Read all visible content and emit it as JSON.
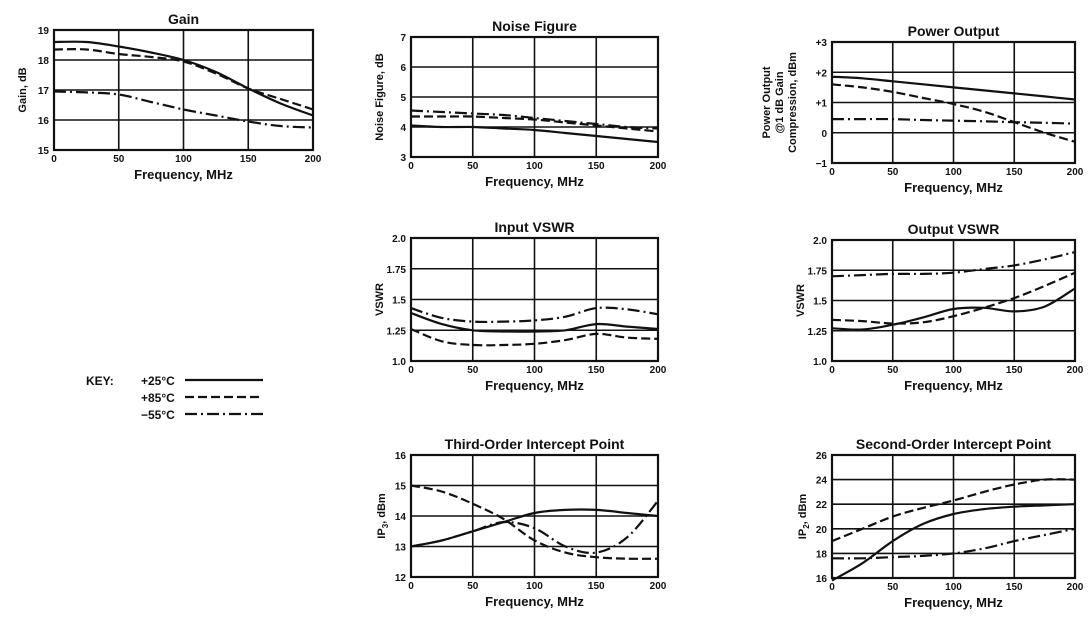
{
  "key": {
    "title": "KEY:",
    "entries": [
      {
        "label": "+25°C",
        "style": "solid"
      },
      {
        "label": "+85°C",
        "style": "dashed"
      },
      {
        "label": "−55°C",
        "style": "dashdot"
      }
    ]
  },
  "chart_data": [
    {
      "id": "gain",
      "type": "line",
      "title": "Gain",
      "xlabel": "Frequency, MHz",
      "ylabel": "Gain, dB",
      "xlim": [
        0,
        200
      ],
      "ylim": [
        15,
        19
      ],
      "xticks": [
        "0",
        "50",
        "100",
        "150",
        "200"
      ],
      "yticks": [
        "15",
        "16",
        "17",
        "18",
        "19"
      ],
      "grid": true,
      "series": [
        {
          "temp": "+25°C",
          "style": "solid",
          "x": [
            0,
            25,
            50,
            75,
            100,
            125,
            150,
            175,
            200
          ],
          "y": [
            18.6,
            18.6,
            18.45,
            18.25,
            18.0,
            17.6,
            17.05,
            16.55,
            16.15
          ]
        },
        {
          "temp": "+85°C",
          "style": "dashed",
          "x": [
            0,
            25,
            50,
            75,
            100,
            125,
            150,
            175,
            200
          ],
          "y": [
            18.35,
            18.35,
            18.2,
            18.1,
            17.95,
            17.55,
            17.05,
            16.7,
            16.35
          ]
        },
        {
          "temp": "−55°C",
          "style": "dashdot",
          "x": [
            0,
            25,
            50,
            75,
            100,
            125,
            150,
            175,
            200
          ],
          "y": [
            16.95,
            16.92,
            16.85,
            16.6,
            16.35,
            16.15,
            15.95,
            15.8,
            15.75
          ]
        }
      ]
    },
    {
      "id": "noise-figure",
      "type": "line",
      "title": "Noise Figure",
      "xlabel": "Frequency, MHz",
      "ylabel": "Noise Figure, dB",
      "xlim": [
        0,
        200
      ],
      "ylim": [
        3,
        7
      ],
      "xticks": [
        "0",
        "50",
        "100",
        "150",
        "200"
      ],
      "yticks": [
        "3",
        "4",
        "5",
        "6",
        "7"
      ],
      "grid": true,
      "series": [
        {
          "temp": "+25°C",
          "style": "solid",
          "x": [
            0,
            25,
            50,
            75,
            100,
            125,
            150,
            175,
            200
          ],
          "y": [
            4.05,
            4.0,
            4.0,
            3.95,
            3.9,
            3.8,
            3.7,
            3.6,
            3.5
          ]
        },
        {
          "temp": "+85°C",
          "style": "dashed",
          "x": [
            0,
            25,
            50,
            75,
            100,
            125,
            150,
            175,
            200
          ],
          "y": [
            4.35,
            4.35,
            4.35,
            4.3,
            4.25,
            4.15,
            4.05,
            3.95,
            3.85
          ]
        },
        {
          "temp": "−55°C",
          "style": "dashdot",
          "x": [
            0,
            25,
            50,
            75,
            100,
            125,
            150,
            175,
            200
          ],
          "y": [
            4.55,
            4.5,
            4.45,
            4.4,
            4.3,
            4.2,
            4.1,
            4.0,
            3.95
          ]
        }
      ]
    },
    {
      "id": "power-output",
      "type": "line",
      "title": "Power Output",
      "xlabel": "Frequency, MHz",
      "ylabel": "Power Output @1 dB Gain Compression, dBm",
      "ylabel_lines": [
        "Power Output",
        "@1 dB Gain",
        "Compression, dBm"
      ],
      "xlim": [
        0,
        200
      ],
      "ylim": [
        -1,
        3
      ],
      "xticks": [
        "0",
        "50",
        "100",
        "150",
        "200"
      ],
      "yticks": [
        "−1",
        "0",
        "+1",
        "+2",
        "+3"
      ],
      "grid": true,
      "series": [
        {
          "temp": "+25°C",
          "style": "solid",
          "x": [
            0,
            25,
            50,
            75,
            100,
            125,
            150,
            175,
            200
          ],
          "y": [
            1.85,
            1.8,
            1.7,
            1.6,
            1.5,
            1.4,
            1.3,
            1.2,
            1.1
          ]
        },
        {
          "temp": "+85°C",
          "style": "dashed",
          "x": [
            0,
            25,
            50,
            75,
            100,
            125,
            150,
            175,
            200
          ],
          "y": [
            1.6,
            1.5,
            1.35,
            1.15,
            0.95,
            0.7,
            0.35,
            0.0,
            -0.3
          ]
        },
        {
          "temp": "−55°C",
          "style": "dashdot",
          "x": [
            0,
            25,
            50,
            75,
            100,
            125,
            150,
            175,
            200
          ],
          "y": [
            0.45,
            0.45,
            0.45,
            0.42,
            0.4,
            0.38,
            0.35,
            0.33,
            0.3
          ]
        }
      ]
    },
    {
      "id": "input-vswr",
      "type": "line",
      "title": "Input VSWR",
      "xlabel": "Frequency, MHz",
      "ylabel": "VSWR",
      "xlim": [
        0,
        200
      ],
      "ylim": [
        1.0,
        2.0
      ],
      "xticks": [
        "0",
        "50",
        "100",
        "150",
        "200"
      ],
      "yticks": [
        "1.0",
        "1.25",
        "1.5",
        "1.75",
        "2.0"
      ],
      "grid": true,
      "series": [
        {
          "temp": "+25°C",
          "style": "solid",
          "x": [
            0,
            25,
            50,
            75,
            100,
            125,
            150,
            175,
            200
          ],
          "y": [
            1.39,
            1.3,
            1.25,
            1.24,
            1.24,
            1.25,
            1.3,
            1.28,
            1.26
          ]
        },
        {
          "temp": "+85°C",
          "style": "dashed",
          "x": [
            0,
            25,
            50,
            75,
            100,
            125,
            150,
            175,
            200
          ],
          "y": [
            1.26,
            1.16,
            1.13,
            1.13,
            1.14,
            1.17,
            1.22,
            1.19,
            1.18
          ]
        },
        {
          "temp": "−55°C",
          "style": "dashdot",
          "x": [
            0,
            25,
            50,
            75,
            100,
            125,
            150,
            175,
            200
          ],
          "y": [
            1.43,
            1.35,
            1.32,
            1.32,
            1.33,
            1.36,
            1.43,
            1.42,
            1.38
          ]
        }
      ]
    },
    {
      "id": "output-vswr",
      "type": "line",
      "title": "Output VSWR",
      "xlabel": "Frequency, MHz",
      "ylabel": "VSWR",
      "xlim": [
        0,
        200
      ],
      "ylim": [
        1.0,
        2.0
      ],
      "xticks": [
        "0",
        "50",
        "100",
        "150",
        "200"
      ],
      "yticks": [
        "1.0",
        "1.25",
        "1.5",
        "1.75",
        "2.0"
      ],
      "grid": true,
      "series": [
        {
          "temp": "+25°C",
          "style": "solid",
          "x": [
            0,
            25,
            50,
            75,
            100,
            125,
            150,
            175,
            200
          ],
          "y": [
            1.27,
            1.26,
            1.3,
            1.36,
            1.43,
            1.44,
            1.41,
            1.45,
            1.6
          ]
        },
        {
          "temp": "+85°C",
          "style": "dashed",
          "x": [
            0,
            25,
            50,
            75,
            100,
            125,
            150,
            175,
            200
          ],
          "y": [
            1.34,
            1.33,
            1.31,
            1.32,
            1.37,
            1.44,
            1.52,
            1.62,
            1.73
          ]
        },
        {
          "temp": "−55°C",
          "style": "dashdot",
          "x": [
            0,
            25,
            50,
            75,
            100,
            125,
            150,
            175,
            200
          ],
          "y": [
            1.7,
            1.71,
            1.72,
            1.72,
            1.73,
            1.76,
            1.79,
            1.84,
            1.9
          ]
        }
      ]
    },
    {
      "id": "third-order-intercept",
      "type": "line",
      "title": "Third-Order Intercept Point",
      "xlabel": "Frequency, MHz",
      "ylabel": "IP3, dBm",
      "ylabel_main": "IP",
      "ylabel_sub": "3",
      "ylabel_tail": ", dBm",
      "xlim": [
        0,
        200
      ],
      "ylim": [
        12,
        16
      ],
      "xticks": [
        "0",
        "50",
        "100",
        "150",
        "200"
      ],
      "yticks": [
        "12",
        "13",
        "14",
        "15",
        "16"
      ],
      "grid": true,
      "series": [
        {
          "temp": "+25°C",
          "style": "solid",
          "x": [
            0,
            25,
            50,
            75,
            100,
            125,
            150,
            175,
            200
          ],
          "y": [
            13.0,
            13.2,
            13.5,
            13.8,
            14.1,
            14.2,
            14.2,
            14.1,
            14.0
          ]
        },
        {
          "temp": "+85°C",
          "style": "dashed",
          "x": [
            0,
            25,
            50,
            75,
            100,
            125,
            150,
            175,
            200
          ],
          "y": [
            15.0,
            14.8,
            14.4,
            13.9,
            13.2,
            12.8,
            12.65,
            12.6,
            12.6
          ]
        },
        {
          "temp": "−55°C",
          "style": "dashdot",
          "x": [
            0,
            25,
            50,
            75,
            100,
            125,
            150,
            175,
            200
          ],
          "y": [
            13.0,
            13.2,
            13.5,
            13.8,
            13.6,
            13.0,
            12.8,
            13.3,
            14.5
          ]
        }
      ]
    },
    {
      "id": "second-order-intercept",
      "type": "line",
      "title": "Second-Order Intercept Point",
      "xlabel": "Frequency, MHz",
      "ylabel": "IP2, dBm",
      "ylabel_main": "IP",
      "ylabel_sub": "2",
      "ylabel_tail": ", dBm",
      "xlim": [
        0,
        200
      ],
      "ylim": [
        16,
        26
      ],
      "xticks": [
        "0",
        "50",
        "100",
        "150",
        "200"
      ],
      "yticks": [
        "16",
        "18",
        "20",
        "22",
        "24",
        "26"
      ],
      "grid": true,
      "series": [
        {
          "temp": "+25°C",
          "style": "solid",
          "x": [
            0,
            25,
            50,
            75,
            100,
            125,
            150,
            175,
            200
          ],
          "y": [
            15.8,
            17.2,
            19.0,
            20.4,
            21.2,
            21.6,
            21.8,
            21.9,
            22.0
          ]
        },
        {
          "temp": "+85°C",
          "style": "dashed",
          "x": [
            0,
            25,
            50,
            75,
            100,
            125,
            150,
            175,
            200
          ],
          "y": [
            19.0,
            20.0,
            21.0,
            21.7,
            22.3,
            23.0,
            23.6,
            24.0,
            24.0
          ]
        },
        {
          "temp": "−55°C",
          "style": "dashdot",
          "x": [
            0,
            25,
            50,
            75,
            100,
            125,
            150,
            175,
            200
          ],
          "y": [
            17.6,
            17.6,
            17.7,
            17.8,
            18.0,
            18.4,
            19.0,
            19.5,
            20.0
          ]
        }
      ]
    }
  ]
}
